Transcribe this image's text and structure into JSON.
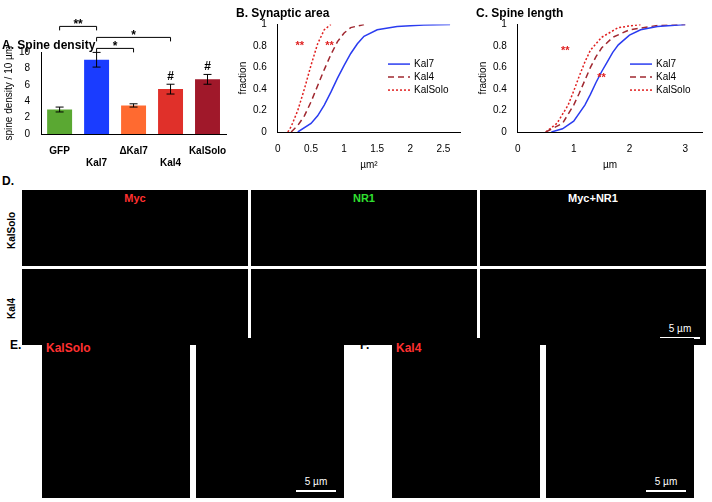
{
  "chart_data": [
    {
      "type": "bar",
      "title": "A. Spine density",
      "y_label": "spine density / 10 µm",
      "categories": [
        "GFP",
        "Kal7",
        "ΔKal7",
        "Kal4",
        "KalSolo"
      ],
      "values": [
        3.0,
        9.1,
        3.5,
        5.5,
        6.7
      ],
      "errors": [
        0.3,
        0.9,
        0.2,
        0.6,
        0.6
      ],
      "colors": [
        "#5aa832",
        "#1a3cff",
        "#ff6a30",
        "#e0302a",
        "#a0182a"
      ],
      "ylim": [
        0,
        10
      ],
      "yticks": [
        0,
        2,
        4,
        6,
        8,
        10
      ],
      "significance": [
        {
          "from": "Kal7",
          "to": "ΔKal7",
          "label": "*"
        },
        {
          "from": "Kal7",
          "to": "Kal4",
          "label": "*"
        },
        {
          "from": "GFP",
          "to": "Kal7",
          "label": "**"
        }
      ],
      "marks": [
        {
          "category": "Kal4",
          "label": "#"
        },
        {
          "category": "KalSolo",
          "label": "#"
        }
      ]
    },
    {
      "type": "line",
      "title": "B. Synaptic area",
      "x_label": "µm²",
      "y_label": "fraction",
      "series": [
        {
          "name": "Kal7",
          "color": "#2a3cf0",
          "line_style": "solid",
          "x": [
            0.3,
            0.5,
            0.6,
            0.7,
            0.8,
            0.9,
            1.0,
            1.1,
            1.2,
            1.3,
            1.5,
            1.8,
            2.2,
            2.6
          ],
          "values": [
            0,
            0.08,
            0.15,
            0.25,
            0.37,
            0.5,
            0.62,
            0.73,
            0.82,
            0.89,
            0.95,
            0.98,
            0.995,
            1
          ]
        },
        {
          "name": "Kal4",
          "color": "#a02830",
          "line_style": "dashed",
          "x": [
            0.2,
            0.3,
            0.4,
            0.5,
            0.6,
            0.7,
            0.8,
            0.9,
            1.0,
            1.1,
            1.3
          ],
          "values": [
            0,
            0.06,
            0.15,
            0.28,
            0.43,
            0.58,
            0.72,
            0.84,
            0.92,
            0.97,
            1
          ]
        },
        {
          "name": "KalSolo",
          "color": "#e02020",
          "line_style": "dotted",
          "x": [
            0.15,
            0.2,
            0.3,
            0.4,
            0.5,
            0.6,
            0.7,
            0.8
          ],
          "values": [
            0,
            0.05,
            0.2,
            0.4,
            0.62,
            0.82,
            0.95,
            1
          ]
        }
      ],
      "xlim": [
        0,
        2.75
      ],
      "xticks": [
        0,
        0.5,
        1,
        1.5,
        2,
        2.5
      ],
      "ylim": [
        0,
        1
      ],
      "yticks": [
        0,
        0.2,
        0.4,
        0.6,
        0.8,
        1
      ],
      "legend": "right",
      "annotations": [
        {
          "text": "**",
          "x": 0.33,
          "y": 0.8,
          "color": "#e02020"
        },
        {
          "text": "**",
          "x": 0.78,
          "y": 0.8,
          "color": "#e02020"
        }
      ]
    },
    {
      "type": "line",
      "title": "C. Spine length",
      "x_label": "µm",
      "y_label": "fraction",
      "series": [
        {
          "name": "Kal7",
          "color": "#2a3cf0",
          "line_style": "solid",
          "x": [
            0.6,
            0.8,
            1.0,
            1.2,
            1.3,
            1.4,
            1.5,
            1.6,
            1.7,
            1.8,
            2.0,
            2.2,
            2.5,
            3.0
          ],
          "values": [
            0,
            0.03,
            0.1,
            0.25,
            0.35,
            0.46,
            0.56,
            0.65,
            0.74,
            0.81,
            0.9,
            0.95,
            0.98,
            1
          ]
        },
        {
          "name": "Kal4",
          "color": "#a02830",
          "line_style": "dashed",
          "x": [
            0.5,
            0.8,
            1.0,
            1.1,
            1.2,
            1.3,
            1.4,
            1.5,
            1.7,
            2.0,
            2.5,
            3.0
          ],
          "values": [
            0,
            0.08,
            0.25,
            0.36,
            0.48,
            0.6,
            0.7,
            0.78,
            0.88,
            0.95,
            0.99,
            1
          ]
        },
        {
          "name": "KalSolo",
          "color": "#e02020",
          "line_style": "dotted",
          "x": [
            0.5,
            0.7,
            0.9,
            1.0,
            1.1,
            1.2,
            1.3,
            1.5,
            1.8,
            2.2
          ],
          "values": [
            0,
            0.08,
            0.25,
            0.38,
            0.52,
            0.65,
            0.76,
            0.88,
            0.97,
            1
          ]
        }
      ],
      "xlim": [
        0,
        3.3
      ],
      "xticks": [
        0,
        1,
        2,
        3
      ],
      "ylim": [
        0,
        1
      ],
      "yticks": [
        0,
        0.2,
        0.4,
        0.6,
        0.8,
        1
      ],
      "legend": "right",
      "annotations": [
        {
          "text": "**",
          "x": 0.85,
          "y": 0.75,
          "color": "#e02020"
        },
        {
          "text": "**",
          "x": 1.5,
          "y": 0.5,
          "color": "#e02020"
        }
      ]
    }
  ],
  "image_panels": [
    {
      "label": "D.",
      "columns": [
        "Myc",
        "NR1",
        "Myc+NR1"
      ],
      "rows": [
        "KalSolo",
        "Kal4"
      ],
      "scale_bar": "5 µm"
    },
    {
      "label": "E.",
      "stain": "KalSolo",
      "scale_bar": "5 µm"
    },
    {
      "label": "F.",
      "stain": "Kal4",
      "scale_bar": "5 µm"
    }
  ]
}
